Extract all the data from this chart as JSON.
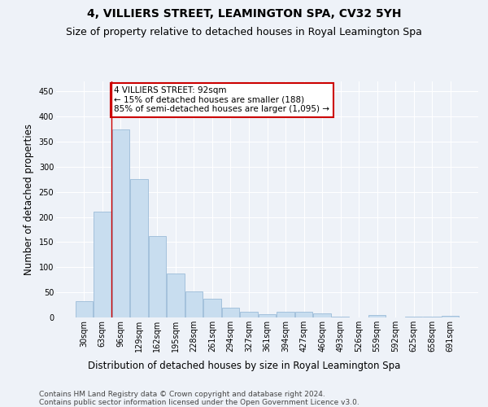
{
  "title": "4, VILLIERS STREET, LEAMINGTON SPA, CV32 5YH",
  "subtitle": "Size of property relative to detached houses in Royal Leamington Spa",
  "xlabel": "Distribution of detached houses by size in Royal Leamington Spa",
  "ylabel": "Number of detached properties",
  "bar_color": "#c8ddef",
  "bar_edge_color": "#9bbbd8",
  "categories": [
    "30sqm",
    "63sqm",
    "96sqm",
    "129sqm",
    "162sqm",
    "195sqm",
    "228sqm",
    "261sqm",
    "294sqm",
    "327sqm",
    "361sqm",
    "394sqm",
    "427sqm",
    "460sqm",
    "493sqm",
    "526sqm",
    "559sqm",
    "592sqm",
    "625sqm",
    "658sqm",
    "691sqm"
  ],
  "values": [
    33,
    210,
    375,
    275,
    162,
    88,
    52,
    38,
    20,
    12,
    6,
    11,
    11,
    8,
    2,
    0,
    5,
    0,
    2,
    2,
    3
  ],
  "ylim": [
    0,
    470
  ],
  "yticks": [
    0,
    50,
    100,
    150,
    200,
    250,
    300,
    350,
    400,
    450
  ],
  "property_line_x": 1.5,
  "annotation_text": "4 VILLIERS STREET: 92sqm\n← 15% of detached houses are smaller (188)\n85% of semi-detached houses are larger (1,095) →",
  "annotation_box_color": "#ffffff",
  "annotation_box_edge_color": "#cc0000",
  "footer_line1": "Contains HM Land Registry data © Crown copyright and database right 2024.",
  "footer_line2": "Contains public sector information licensed under the Open Government Licence v3.0.",
  "background_color": "#eef2f8",
  "grid_color": "#ffffff",
  "title_fontsize": 10,
  "subtitle_fontsize": 9,
  "axis_label_fontsize": 8.5,
  "tick_fontsize": 7,
  "annotation_fontsize": 7.5,
  "footer_fontsize": 6.5
}
